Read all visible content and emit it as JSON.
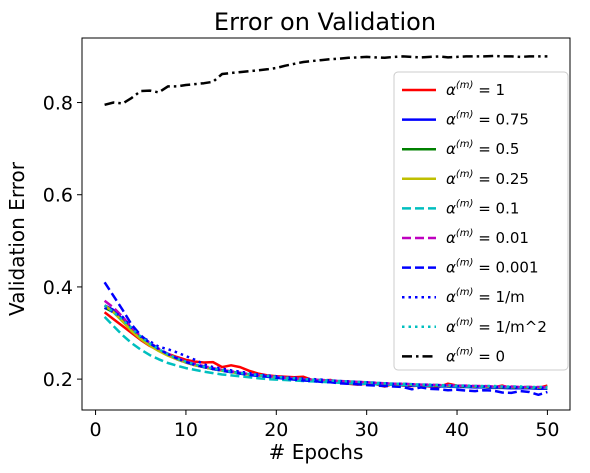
{
  "chart_data": {
    "type": "line",
    "title": "Error on Validation",
    "xlabel": "# Epochs",
    "ylabel": "Validation Error",
    "xlim": [
      -1.5,
      52.5
    ],
    "ylim": [
      0.133,
      0.94
    ],
    "xticks": [
      0,
      10,
      20,
      30,
      40,
      50
    ],
    "yticks": [
      0.2,
      0.4,
      0.6,
      0.8
    ],
    "xtick_labels": [
      "0",
      "10",
      "20",
      "30",
      "40",
      "50"
    ],
    "ytick_labels": [
      "0.2",
      "0.4",
      "0.6",
      "0.8"
    ],
    "grid": false,
    "legend_position": "right",
    "legend_prefix": "α",
    "legend_sup": "(m)",
    "x": [
      1,
      2,
      3,
      4,
      5,
      6,
      7,
      8,
      9,
      10,
      11,
      12,
      13,
      14,
      15,
      16,
      17,
      18,
      19,
      20,
      21,
      22,
      23,
      24,
      25,
      26,
      27,
      28,
      29,
      30,
      31,
      32,
      33,
      34,
      35,
      36,
      37,
      38,
      39,
      40,
      41,
      42,
      43,
      44,
      45,
      46,
      47,
      48,
      49,
      50
    ],
    "series": [
      {
        "name": " = 1",
        "color": "#ff0000",
        "dash": "solid",
        "values": [
          0.345,
          0.33,
          0.315,
          0.3,
          0.285,
          0.272,
          0.262,
          0.255,
          0.248,
          0.242,
          0.238,
          0.236,
          0.237,
          0.226,
          0.23,
          0.226,
          0.218,
          0.212,
          0.208,
          0.206,
          0.205,
          0.204,
          0.205,
          0.198,
          0.197,
          0.198,
          0.192,
          0.19,
          0.188,
          0.19,
          0.189,
          0.184,
          0.19,
          0.186,
          0.185,
          0.186,
          0.184,
          0.183,
          0.19,
          0.186,
          0.185,
          0.183,
          0.184,
          0.182,
          0.186,
          0.18,
          0.182,
          0.183,
          0.181,
          0.186
        ]
      },
      {
        "name": " = 0.75",
        "color": "#0000ff",
        "dash": "solid",
        "values": [
          0.36,
          0.35,
          0.33,
          0.31,
          0.29,
          0.275,
          0.262,
          0.252,
          0.243,
          0.236,
          0.23,
          0.226,
          0.222,
          0.219,
          0.216,
          0.213,
          0.21,
          0.208,
          0.206,
          0.204,
          0.203,
          0.201,
          0.2,
          0.198,
          0.197,
          0.196,
          0.195,
          0.193,
          0.192,
          0.191,
          0.19,
          0.189,
          0.188,
          0.187,
          0.186,
          0.186,
          0.185,
          0.184,
          0.184,
          0.183,
          0.183,
          0.182,
          0.182,
          0.181,
          0.181,
          0.18,
          0.18,
          0.18,
          0.179,
          0.179
        ]
      },
      {
        "name": " = 0.5",
        "color": "#008000",
        "dash": "solid",
        "values": [
          0.355,
          0.345,
          0.325,
          0.305,
          0.288,
          0.274,
          0.262,
          0.252,
          0.244,
          0.237,
          0.231,
          0.226,
          0.222,
          0.219,
          0.216,
          0.213,
          0.21,
          0.208,
          0.206,
          0.204,
          0.202,
          0.201,
          0.2,
          0.198,
          0.197,
          0.196,
          0.195,
          0.194,
          0.193,
          0.192,
          0.191,
          0.19,
          0.189,
          0.188,
          0.188,
          0.187,
          0.186,
          0.186,
          0.185,
          0.185,
          0.184,
          0.184,
          0.183,
          0.183,
          0.182,
          0.182,
          0.182,
          0.181,
          0.181,
          0.181
        ]
      },
      {
        "name": " = 0.25",
        "color": "#bfbf00",
        "dash": "solid",
        "values": [
          0.36,
          0.345,
          0.325,
          0.304,
          0.287,
          0.273,
          0.261,
          0.251,
          0.243,
          0.236,
          0.23,
          0.226,
          0.222,
          0.218,
          0.215,
          0.212,
          0.21,
          0.208,
          0.206,
          0.204,
          0.202,
          0.201,
          0.2,
          0.198,
          0.197,
          0.196,
          0.195,
          0.194,
          0.193,
          0.192,
          0.191,
          0.19,
          0.189,
          0.189,
          0.188,
          0.187,
          0.187,
          0.186,
          0.186,
          0.185,
          0.185,
          0.184,
          0.184,
          0.183,
          0.183,
          0.183,
          0.182,
          0.182,
          0.182,
          0.181
        ]
      },
      {
        "name": " = 0.1",
        "color": "#00bfbf",
        "dash": "dashed",
        "values": [
          0.335,
          0.315,
          0.295,
          0.278,
          0.264,
          0.252,
          0.243,
          0.235,
          0.229,
          0.224,
          0.22,
          0.216,
          0.213,
          0.21,
          0.208,
          0.206,
          0.204,
          0.202,
          0.2,
          0.199,
          0.198,
          0.197,
          0.196,
          0.195,
          0.194,
          0.193,
          0.192,
          0.191,
          0.19,
          0.19,
          0.189,
          0.188,
          0.188,
          0.187,
          0.187,
          0.186,
          0.186,
          0.185,
          0.185,
          0.184,
          0.184,
          0.184,
          0.183,
          0.183,
          0.183,
          0.182,
          0.182,
          0.182,
          0.181,
          0.181
        ]
      },
      {
        "name": " = 0.01",
        "color": "#bf00bf",
        "dash": "dashed",
        "values": [
          0.37,
          0.355,
          0.335,
          0.312,
          0.294,
          0.279,
          0.266,
          0.255,
          0.246,
          0.239,
          0.233,
          0.228,
          0.224,
          0.22,
          0.217,
          0.214,
          0.211,
          0.209,
          0.207,
          0.205,
          0.203,
          0.202,
          0.2,
          0.199,
          0.198,
          0.197,
          0.196,
          0.195,
          0.194,
          0.193,
          0.192,
          0.191,
          0.19,
          0.19,
          0.189,
          0.188,
          0.188,
          0.187,
          0.187,
          0.186,
          0.186,
          0.185,
          0.185,
          0.184,
          0.184,
          0.184,
          0.183,
          0.183,
          0.183,
          0.182
        ]
      },
      {
        "name": " = 0.001",
        "color": "#0000ff",
        "dash": "dashed",
        "values": [
          0.41,
          0.38,
          0.35,
          0.318,
          0.295,
          0.278,
          0.265,
          0.254,
          0.245,
          0.237,
          0.231,
          0.226,
          0.222,
          0.218,
          0.215,
          0.212,
          0.209,
          0.207,
          0.205,
          0.203,
          0.201,
          0.199,
          0.197,
          0.196,
          0.194,
          0.193,
          0.191,
          0.19,
          0.189,
          0.187,
          0.186,
          0.185,
          0.184,
          0.183,
          0.178,
          0.182,
          0.179,
          0.178,
          0.176,
          0.177,
          0.175,
          0.174,
          0.176,
          0.175,
          0.171,
          0.17,
          0.174,
          0.172,
          0.166,
          0.172
        ]
      },
      {
        "name": " = 1/m",
        "color": "#0000ff",
        "dash": "dotted",
        "values": [
          0.355,
          0.345,
          0.335,
          0.31,
          0.292,
          0.282,
          0.27,
          0.265,
          0.258,
          0.25,
          0.242,
          0.232,
          0.226,
          0.223,
          0.219,
          0.216,
          0.213,
          0.21,
          0.208,
          0.206,
          0.204,
          0.203,
          0.201,
          0.2,
          0.199,
          0.197,
          0.196,
          0.195,
          0.194,
          0.193,
          0.192,
          0.191,
          0.19,
          0.19,
          0.189,
          0.188,
          0.187,
          0.187,
          0.186,
          0.185,
          0.185,
          0.184,
          0.184,
          0.183,
          0.183,
          0.182,
          0.182,
          0.181,
          0.181,
          0.181
        ]
      },
      {
        "name": " = 1/m^2",
        "color": "#00bfbf",
        "dash": "dotted",
        "values": [
          0.36,
          0.345,
          0.328,
          0.31,
          0.292,
          0.277,
          0.265,
          0.254,
          0.245,
          0.238,
          0.232,
          0.227,
          0.223,
          0.219,
          0.216,
          0.213,
          0.211,
          0.209,
          0.207,
          0.205,
          0.203,
          0.202,
          0.2,
          0.199,
          0.198,
          0.197,
          0.196,
          0.195,
          0.194,
          0.193,
          0.192,
          0.191,
          0.19,
          0.19,
          0.189,
          0.188,
          0.188,
          0.187,
          0.187,
          0.186,
          0.186,
          0.185,
          0.185,
          0.185,
          0.184,
          0.184,
          0.184,
          0.183,
          0.183,
          0.183
        ]
      },
      {
        "name": " = 0",
        "color": "#000000",
        "dash": "dashdot",
        "values": [
          0.795,
          0.8,
          0.798,
          0.81,
          0.825,
          0.826,
          0.822,
          0.835,
          0.835,
          0.838,
          0.84,
          0.842,
          0.845,
          0.862,
          0.864,
          0.866,
          0.868,
          0.87,
          0.872,
          0.875,
          0.88,
          0.884,
          0.888,
          0.89,
          0.892,
          0.894,
          0.895,
          0.897,
          0.898,
          0.899,
          0.898,
          0.897,
          0.899,
          0.9,
          0.899,
          0.898,
          0.899,
          0.9,
          0.898,
          0.899,
          0.9,
          0.9,
          0.9,
          0.901,
          0.9,
          0.9,
          0.899,
          0.9,
          0.9,
          0.9
        ]
      }
    ]
  }
}
